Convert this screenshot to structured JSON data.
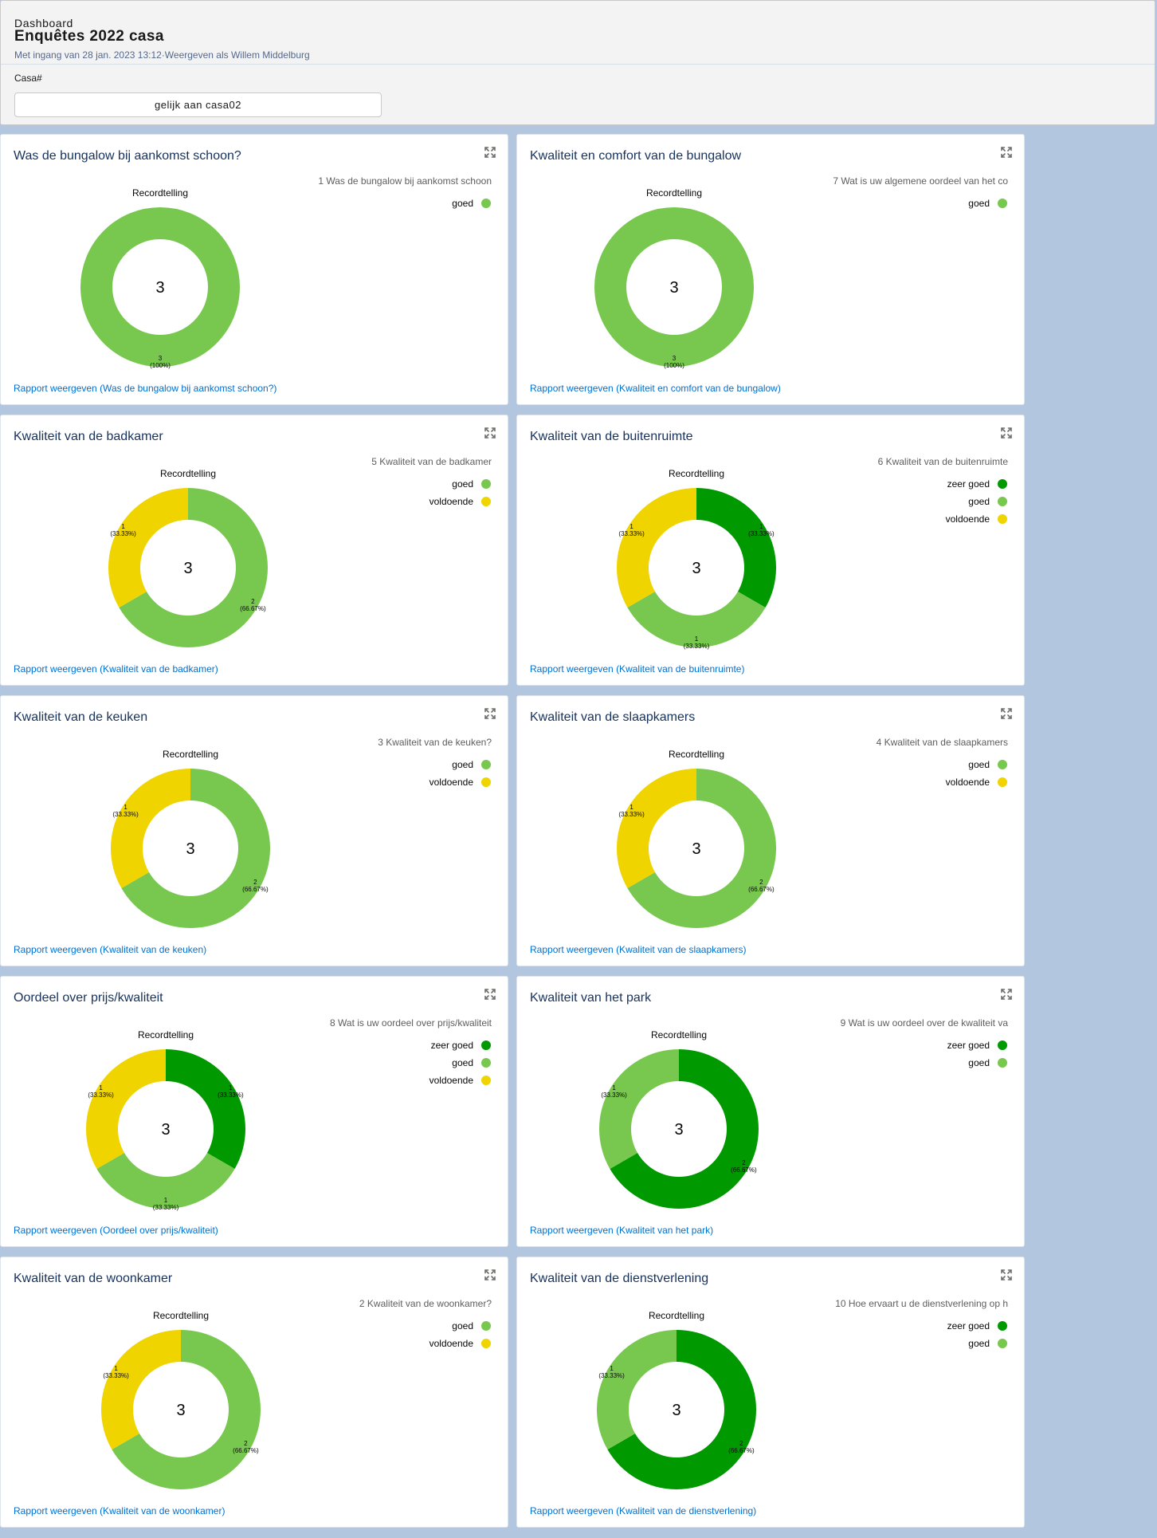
{
  "header": {
    "breadcrumb": "Dashboard",
    "title": "Enquêtes 2022 casa",
    "subtitle": "Met ingang van 28 jan. 2023 13:12·Weergeven als Willem Middelburg",
    "filter_label": "Casa#",
    "filter_value": "gelijk aan casa02"
  },
  "colors": {
    "zeer goed": "#009900",
    "goed": "#78c850",
    "voldoende": "#f0d400"
  },
  "cards": [
    {
      "title": "Was de bungalow bij aankomst schoon?",
      "chart_label": "Recordtelling",
      "legend_title": "1 Was de bungalow bij aankomst schoon",
      "report_link": "Rapport weergeven (Was de bungalow bij aankomst schoon?)",
      "center": "3",
      "chart_data": {
        "type": "pie",
        "total": 3,
        "categories": [
          "goed"
        ],
        "values": [
          3
        ],
        "labels": [
          [
            "3",
            "(100%)"
          ]
        ]
      }
    },
    {
      "title": "Kwaliteit en comfort van de bungalow",
      "chart_label": "Recordtelling",
      "legend_title": "7 Wat is uw  algemene oordeel van het co",
      "report_link": "Rapport weergeven (Kwaliteit en comfort van de bungalow)",
      "center": "3",
      "chart_data": {
        "type": "pie",
        "total": 3,
        "categories": [
          "goed"
        ],
        "values": [
          3
        ],
        "labels": [
          [
            "3",
            "(100%)"
          ]
        ]
      }
    },
    {
      "title": "Kwaliteit van de badkamer",
      "chart_label": "Recordtelling",
      "legend_title": "5 Kwaliteit van de badkamer",
      "report_link": "Rapport weergeven (Kwaliteit van de badkamer)",
      "center": "3",
      "chart_data": {
        "type": "pie",
        "total": 3,
        "categories": [
          "goed",
          "voldoende"
        ],
        "values": [
          2,
          1
        ],
        "labels": [
          [
            "2",
            "(66.67%)"
          ],
          [
            "1",
            "(33.33%)"
          ]
        ]
      }
    },
    {
      "title": "Kwaliteit van de buitenruimte",
      "chart_label": "Recordtelling",
      "legend_title": "6 Kwaliteit van de buitenruimte",
      "report_link": "Rapport weergeven (Kwaliteit van de buitenruimte)",
      "center": "3",
      "chart_data": {
        "type": "pie",
        "total": 3,
        "categories": [
          "zeer goed",
          "goed",
          "voldoende"
        ],
        "values": [
          1,
          1,
          1
        ],
        "labels": [
          [
            "1",
            "(33.33%)"
          ],
          [
            "1",
            "(33.33%)"
          ],
          [
            "1",
            "(33.33%)"
          ]
        ]
      }
    },
    {
      "title": "Kwaliteit van de keuken",
      "chart_label": "Recordtelling",
      "legend_title": "3 Kwaliteit van de keuken?",
      "report_link": "Rapport weergeven (Kwaliteit van de keuken)",
      "center": "3",
      "chart_data": {
        "type": "pie",
        "total": 3,
        "categories": [
          "goed",
          "voldoende"
        ],
        "values": [
          2,
          1
        ],
        "labels": [
          [
            "2",
            "(66.67%)"
          ],
          [
            "1",
            "(33.33%)"
          ]
        ]
      }
    },
    {
      "title": "Kwaliteit van de slaapkamers",
      "chart_label": "Recordtelling",
      "legend_title": "4 Kwaliteit van de slaapkamers",
      "report_link": "Rapport weergeven (Kwaliteit van de slaapkamers)",
      "center": "3",
      "chart_data": {
        "type": "pie",
        "total": 3,
        "categories": [
          "goed",
          "voldoende"
        ],
        "values": [
          2,
          1
        ],
        "labels": [
          [
            "2",
            "(66.67%)"
          ],
          [
            "1",
            "(33.33%)"
          ]
        ]
      }
    },
    {
      "title": "Oordeel over prijs/kwaliteit",
      "chart_label": "Recordtelling",
      "legend_title": "8 Wat is uw oordeel over prijs/kwaliteit",
      "report_link": "Rapport weergeven (Oordeel over prijs/kwaliteit)",
      "center": "3",
      "chart_data": {
        "type": "pie",
        "total": 3,
        "categories": [
          "zeer goed",
          "goed",
          "voldoende"
        ],
        "values": [
          1,
          1,
          1
        ],
        "labels": [
          [
            "1",
            "(33.33%)"
          ],
          [
            "1",
            "(33.33%)"
          ],
          [
            "1",
            "(33.33%)"
          ]
        ]
      }
    },
    {
      "title": "Kwaliteit van het park",
      "chart_label": "Recordtelling",
      "legend_title": "9 Wat is uw oordeel over de kwaliteit va",
      "report_link": "Rapport weergeven (Kwaliteit van het park)",
      "center": "3",
      "chart_data": {
        "type": "pie",
        "total": 3,
        "categories": [
          "zeer goed",
          "goed"
        ],
        "values": [
          2,
          1
        ],
        "labels": [
          [
            "2",
            "(66.67%)"
          ],
          [
            "1",
            "(33.33%)"
          ]
        ]
      }
    },
    {
      "title": "Kwaliteit van de woonkamer",
      "chart_label": "Recordtelling",
      "legend_title": "2 Kwaliteit van de woonkamer?",
      "report_link": "Rapport weergeven (Kwaliteit van de woonkamer)",
      "center": "3",
      "chart_data": {
        "type": "pie",
        "total": 3,
        "categories": [
          "goed",
          "voldoende"
        ],
        "values": [
          2,
          1
        ],
        "labels": [
          [
            "2",
            "(66.67%)"
          ],
          [
            "1",
            "(33.33%)"
          ]
        ]
      }
    },
    {
      "title": "Kwaliteit van de dienstverlening",
      "chart_label": "Recordtelling",
      "legend_title": "10 Hoe ervaart u de dienstverlening op h",
      "report_link": "Rapport weergeven (Kwaliteit van de dienstverlening)",
      "center": "3",
      "chart_data": {
        "type": "pie",
        "total": 3,
        "categories": [
          "zeer goed",
          "goed"
        ],
        "values": [
          2,
          1
        ],
        "labels": [
          [
            "2",
            "(66.67%)"
          ],
          [
            "1",
            "(33.33%)"
          ]
        ]
      }
    }
  ]
}
